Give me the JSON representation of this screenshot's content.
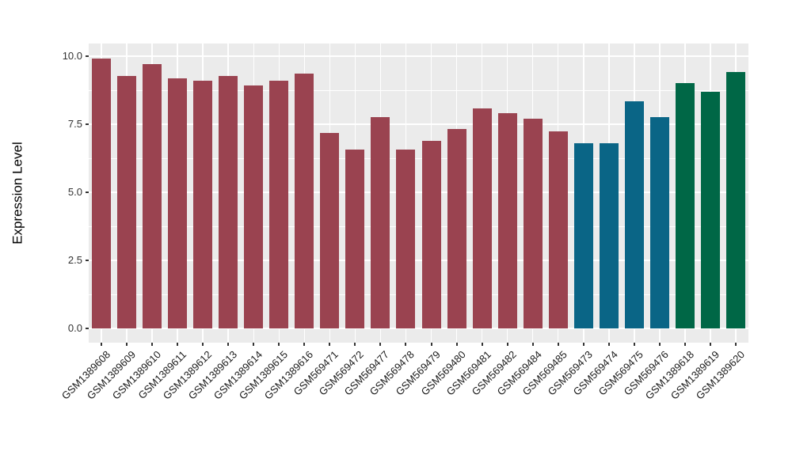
{
  "chart_data": {
    "type": "bar",
    "title": "",
    "xlabel": "",
    "ylabel": "Expression Level",
    "ylim": [
      0,
      10
    ],
    "yticks": [
      0,
      2.5,
      5,
      7.5,
      10
    ],
    "ytick_labels": [
      "0.0",
      "2.5",
      "5.0",
      "7.5",
      "10.0"
    ],
    "minor_yticks": [
      1.25,
      3.75,
      6.25,
      8.75
    ],
    "grid": "major-and-minor-horizontal, major-vertical-per-category",
    "legend_position": "none",
    "panel_background": "#EBEBEB",
    "gridline_color": "#FFFFFF",
    "categories": [
      "GSM1389608",
      "GSM1389609",
      "GSM1389610",
      "GSM1389611",
      "GSM1389612",
      "GSM1389613",
      "GSM1389614",
      "GSM1389615",
      "GSM1389616",
      "GSM569471",
      "GSM569472",
      "GSM569477",
      "GSM569478",
      "GSM569479",
      "GSM569480",
      "GSM569481",
      "GSM569482",
      "GSM569484",
      "GSM569485",
      "GSM569473",
      "GSM569474",
      "GSM569475",
      "GSM569476",
      "GSM1389618",
      "GSM1389619",
      "GSM1389620"
    ],
    "values": [
      9.92,
      9.28,
      9.72,
      9.2,
      9.1,
      9.28,
      8.93,
      9.11,
      9.35,
      7.17,
      6.56,
      7.75,
      6.56,
      6.88,
      7.33,
      8.09,
      7.92,
      7.7,
      7.23,
      6.81,
      6.81,
      8.35,
      7.75,
      9.01,
      8.69,
      9.43
    ],
    "bar_groups": [
      "red",
      "red",
      "red",
      "red",
      "red",
      "red",
      "red",
      "red",
      "red",
      "red",
      "red",
      "red",
      "red",
      "red",
      "red",
      "red",
      "red",
      "red",
      "red",
      "blue",
      "blue",
      "blue",
      "blue",
      "green",
      "green",
      "green"
    ],
    "group_colors": {
      "red": "#9A4350",
      "blue": "#0A6586",
      "green": "#006746"
    }
  }
}
